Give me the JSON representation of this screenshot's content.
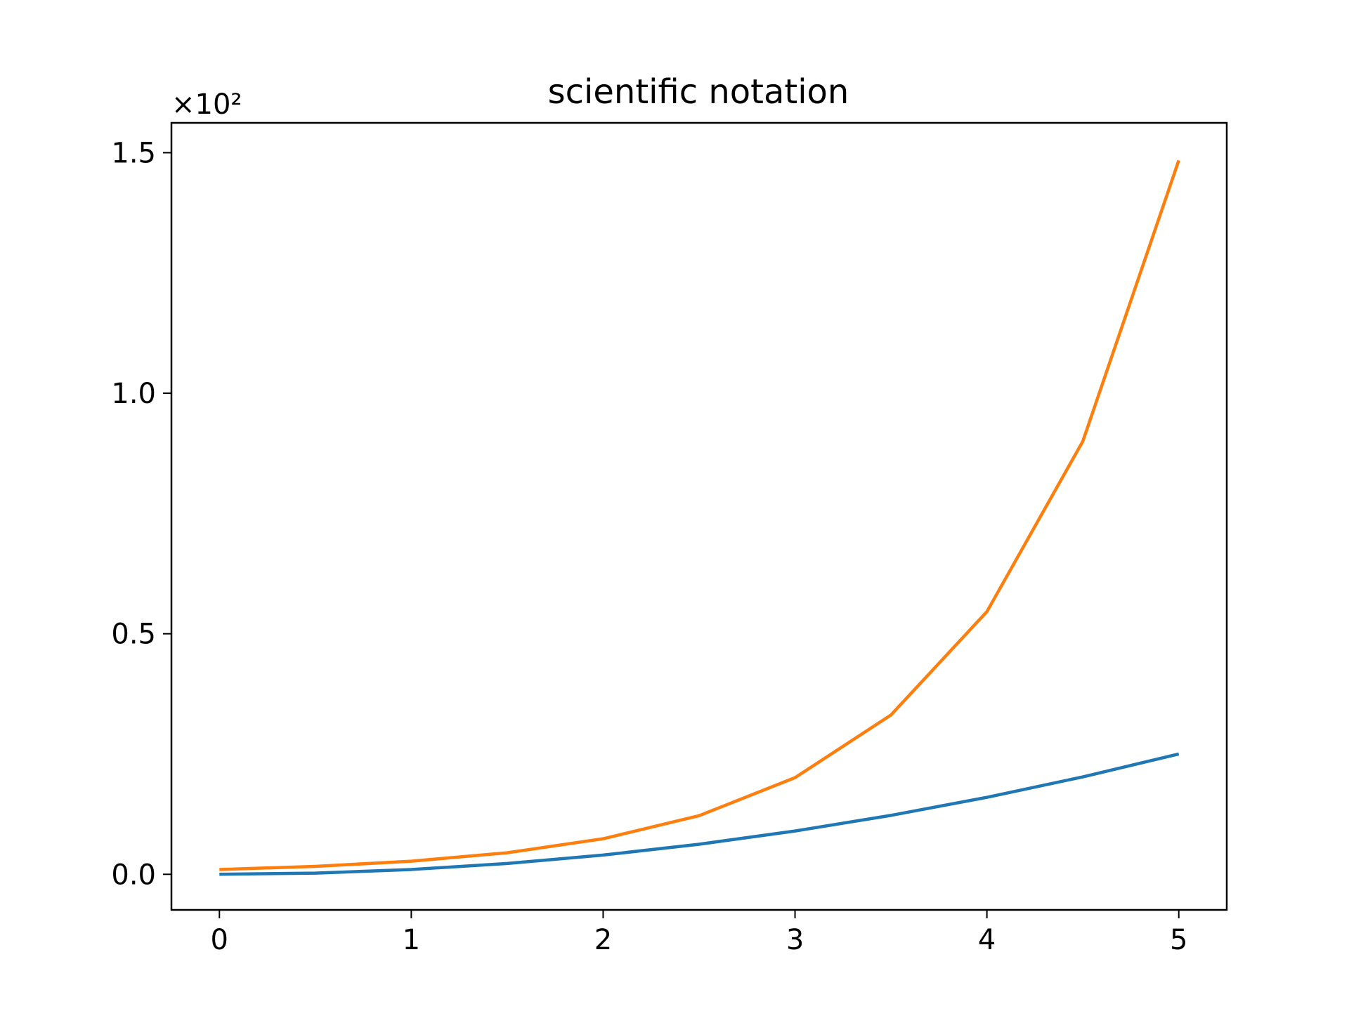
{
  "chart_data": {
    "type": "line",
    "title": "scientific notation",
    "xlabel": "",
    "ylabel": "",
    "y_offset_label": "×10²",
    "xlim": [
      -0.25,
      5.25
    ],
    "ylim": [
      -0.074,
      1.562
    ],
    "grid": false,
    "legend": "none",
    "x_ticks": [
      0,
      1,
      2,
      3,
      4,
      5
    ],
    "x_tick_labels": [
      "0",
      "1",
      "2",
      "3",
      "4",
      "5"
    ],
    "y_ticks": [
      0.0,
      0.5,
      1.0,
      1.5
    ],
    "y_tick_labels": [
      "0.0",
      "0.5",
      "1.0",
      "1.5"
    ],
    "x": [
      0,
      0.5,
      1,
      1.5,
      2,
      2.5,
      3,
      3.5,
      4,
      4.5,
      5
    ],
    "series": [
      {
        "color": "#1f77b4",
        "values": [
          0.0,
          0.0025,
          0.01,
          0.0225,
          0.04,
          0.0625,
          0.09,
          0.1225,
          0.16,
          0.2025,
          0.25
        ]
      },
      {
        "color": "#ff7f0e",
        "values": [
          0.01,
          0.0165,
          0.0272,
          0.0448,
          0.0739,
          0.1218,
          0.2009,
          0.3312,
          0.546,
          0.9002,
          1.4841
        ]
      }
    ]
  }
}
